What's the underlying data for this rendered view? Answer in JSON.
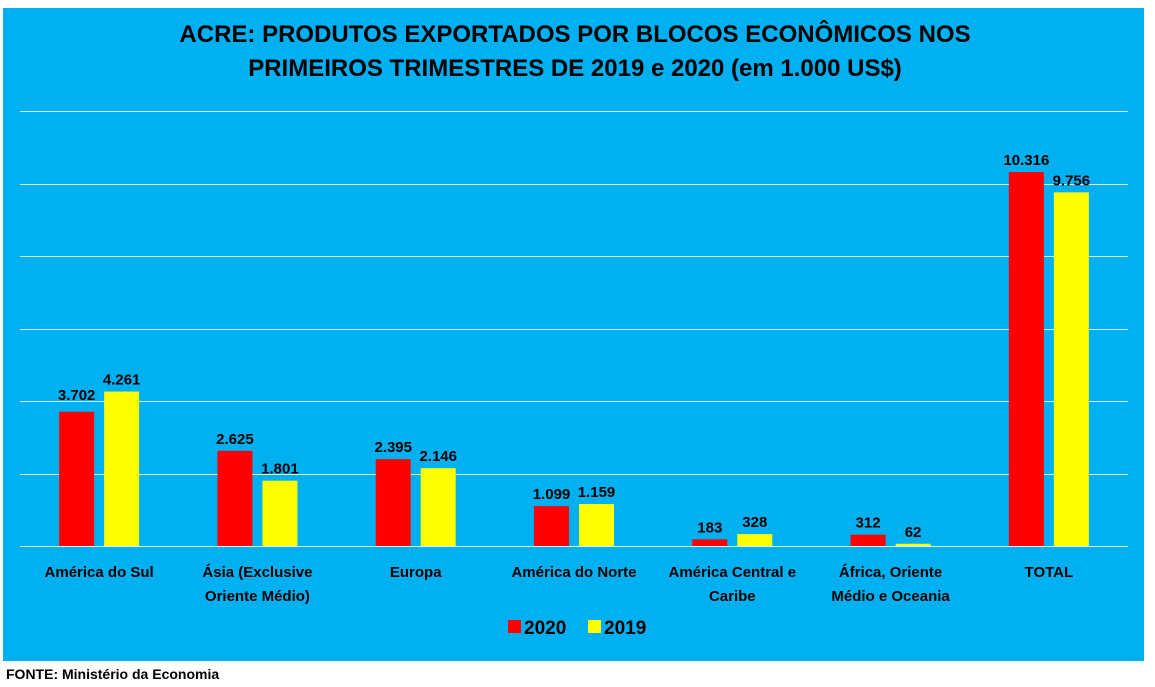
{
  "chart_data": {
    "type": "bar",
    "title": "ACRE: PRODUTOS EXPORTADOS POR BLOCOS ECONÔMICOS NOS PRIMEIROS TRIMESTRES DE 2019 e 2020 (em 1.000 US$)",
    "title_lines": [
      "ACRE: PRODUTOS EXPORTADOS POR BLOCOS ECONÔMICOS NOS",
      "PRIMEIROS TRIMESTRES DE 2019 e 2020 (em 1.000 US$)"
    ],
    "categories": [
      [
        "América do Sul"
      ],
      [
        "Ásia (Exclusive",
        "Oriente Médio)"
      ],
      [
        "Europa"
      ],
      [
        "América do Norte"
      ],
      [
        "América Central e",
        "Caribe"
      ],
      [
        "África, Oriente",
        "Médio e Oceania"
      ],
      [
        "TOTAL"
      ]
    ],
    "series": [
      {
        "name": "2020",
        "color": "#ff0000",
        "values": [
          3702,
          2625,
          2395,
          1099,
          183,
          312,
          10316
        ],
        "labels": [
          "3.702",
          "2.625",
          "2.395",
          "1.099",
          "183",
          "312",
          "10.316"
        ]
      },
      {
        "name": "2019",
        "color": "#ffff00",
        "values": [
          4261,
          1801,
          2146,
          1159,
          328,
          62,
          9756
        ],
        "labels": [
          "4.261",
          "1.801",
          "2.146",
          "1.159",
          "328",
          "62",
          "9.756"
        ]
      }
    ],
    "xlabel": "",
    "ylabel": "",
    "ylim": [
      0,
      12000
    ],
    "ytick_step": 2000,
    "y_axis_labels_visible": false,
    "grid": true,
    "legend_position": "bottom",
    "background_color": "#00b0f0",
    "gridline_color": "#ffffff"
  },
  "source": "FONTE:  Ministério da Economia"
}
